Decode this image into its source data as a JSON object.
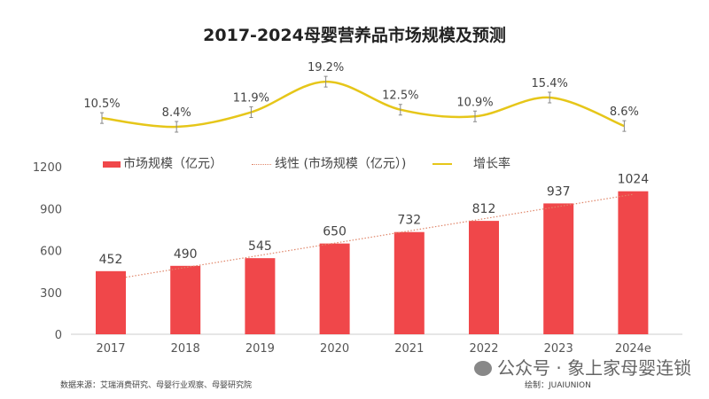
{
  "chart_data": {
    "title": "2017-2024母婴营养品市场规模及预测",
    "type": "bar",
    "categories": [
      "2017",
      "2018",
      "2019",
      "2020",
      "2021",
      "2022",
      "2023",
      "2024e"
    ],
    "series": [
      {
        "name": "市场规模（亿元）",
        "type": "bar",
        "color": "#f0474a",
        "values": [
          452,
          490,
          545,
          650,
          732,
          812,
          937,
          1024
        ]
      },
      {
        "name": "线性 (市场规模（亿元）)",
        "type": "linear-trend",
        "color": "#e0866a"
      },
      {
        "name": "增长率",
        "type": "line",
        "color": "#e6c619",
        "values": [
          10.5,
          8.4,
          11.9,
          19.2,
          12.5,
          10.9,
          15.4,
          8.6
        ],
        "labels": [
          "10.5%",
          "8.4%",
          "11.9%",
          "19.2%",
          "12.5%",
          "10.9%",
          "15.4%",
          "8.6%"
        ]
      }
    ],
    "yticks": [
      "0",
      "300",
      "600",
      "900",
      "1200"
    ],
    "ylim": [
      0,
      1200
    ],
    "grid": false,
    "legend": "top-left"
  },
  "footer": {
    "source": "数据来源：艾瑞消费研究、母婴行业观察、母婴研究院",
    "author": "绘制：JUAIUNION",
    "watermark": "公众号 · 象上家母婴连锁"
  }
}
